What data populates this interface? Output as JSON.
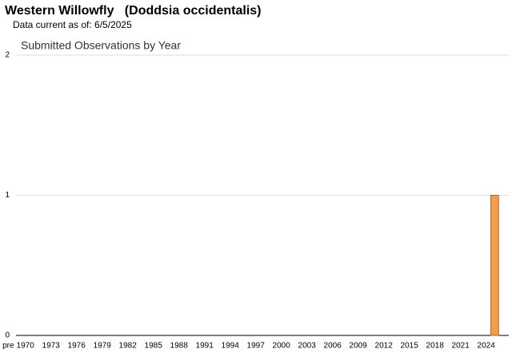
{
  "chart_data": {
    "type": "bar",
    "title": "Western Willowfly   (Doddsia occidentalis)",
    "subtitle": "Data current as of: 6/5/2025",
    "chart_title": "Submitted Observations by Year",
    "categories": [
      "pre",
      null,
      "1970",
      null,
      null,
      "1973",
      null,
      null,
      "1976",
      null,
      null,
      "1979",
      null,
      null,
      "1982",
      null,
      null,
      "1985",
      null,
      null,
      "1988",
      null,
      null,
      "1991",
      null,
      null,
      "1994",
      null,
      null,
      "1997",
      null,
      null,
      "2000",
      null,
      null,
      "2003",
      null,
      null,
      "2006",
      null,
      null,
      "2009",
      null,
      null,
      "2012",
      null,
      null,
      "2015",
      null,
      null,
      "2018",
      null,
      null,
      "2021",
      null,
      null,
      "2024",
      null
    ],
    "values": [
      0,
      0,
      0,
      0,
      0,
      0,
      0,
      0,
      0,
      0,
      0,
      0,
      0,
      0,
      0,
      0,
      0,
      0,
      0,
      0,
      0,
      0,
      0,
      0,
      0,
      0,
      0,
      0,
      0,
      0,
      0,
      0,
      0,
      0,
      0,
      0,
      0,
      0,
      0,
      0,
      0,
      0,
      0,
      0,
      0,
      0,
      0,
      0,
      0,
      0,
      0,
      0,
      0,
      0,
      0,
      0,
      0,
      1
    ],
    "color": "#f0a04b",
    "ylim": [
      0,
      2
    ],
    "yticks": [
      0,
      1,
      2
    ],
    "grid": true
  }
}
